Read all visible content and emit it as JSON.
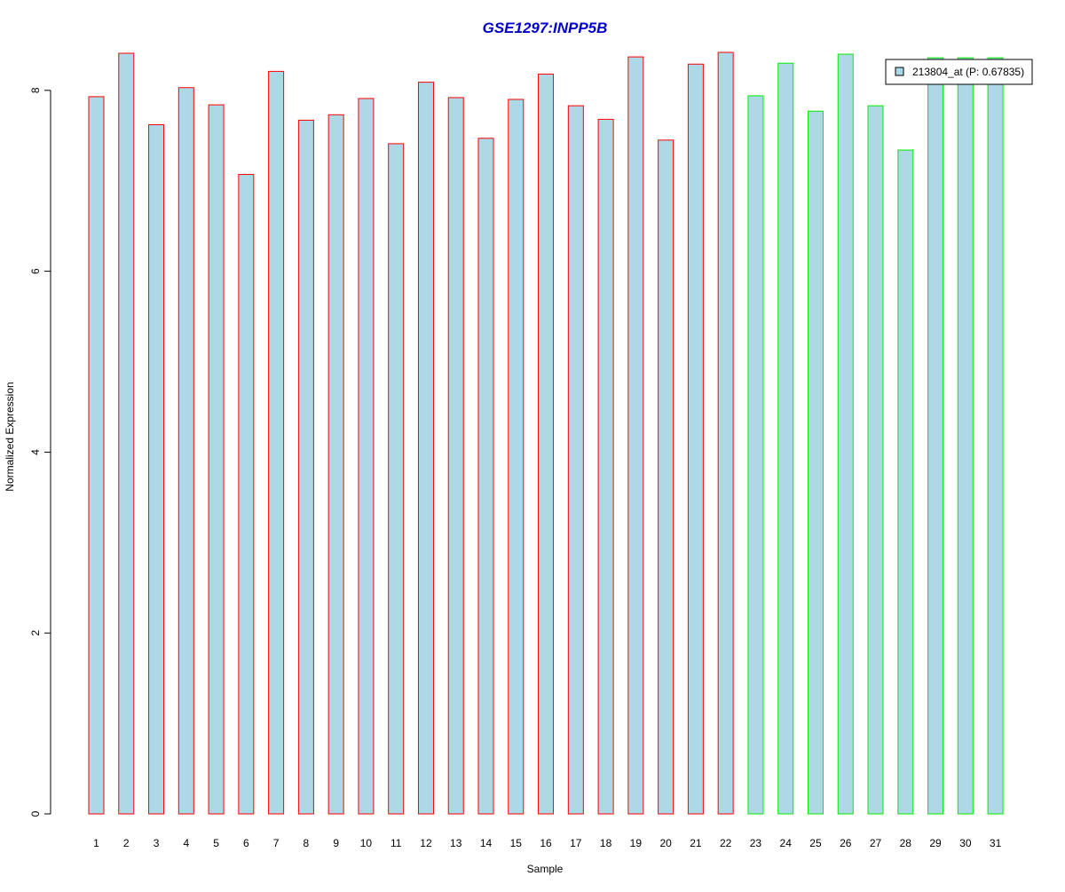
{
  "chart_data": {
    "type": "bar",
    "title": "GSE1297:INPP5B",
    "xlabel": "Sample",
    "ylabel": "Normalized Expression",
    "categories": [
      "1",
      "2",
      "3",
      "4",
      "5",
      "6",
      "7",
      "8",
      "9",
      "10",
      "11",
      "12",
      "13",
      "14",
      "15",
      "16",
      "17",
      "18",
      "19",
      "20",
      "21",
      "22",
      "23",
      "24",
      "25",
      "26",
      "27",
      "28",
      "29",
      "30",
      "31"
    ],
    "series": [
      {
        "name": "213804_at (P: 0.67835)",
        "values": [
          7.93,
          8.41,
          7.62,
          8.03,
          7.84,
          7.07,
          8.21,
          7.67,
          7.73,
          7.91,
          7.41,
          8.09,
          7.92,
          7.47,
          7.9,
          8.18,
          7.83,
          7.68,
          8.37,
          7.45,
          8.29,
          8.42,
          7.94,
          8.3,
          7.77,
          8.4,
          7.83,
          7.34,
          8.36,
          8.36,
          8.36
        ]
      }
    ],
    "group_border_colors": [
      "#ff0000",
      "#ff0000",
      "#ff0000",
      "#ff0000",
      "#ff0000",
      "#ff0000",
      "#ff0000",
      "#ff0000",
      "#ff0000",
      "#ff0000",
      "#ff0000",
      "#ff0000",
      "#ff0000",
      "#ff0000",
      "#ff0000",
      "#ff0000",
      "#ff0000",
      "#ff0000",
      "#ff0000",
      "#ff0000",
      "#ff0000",
      "#ff0000",
      "#00ee00",
      "#00ee00",
      "#00ee00",
      "#00ee00",
      "#00ee00",
      "#00ee00",
      "#00ee00",
      "#00ee00",
      "#00ee00"
    ],
    "bar_fill": "#add8e6",
    "title_color": "#0000cc",
    "yticks": [
      0,
      2,
      4,
      6,
      8
    ],
    "ylim": [
      0,
      8.45
    ],
    "grid": false,
    "legend_position": "top-right"
  }
}
